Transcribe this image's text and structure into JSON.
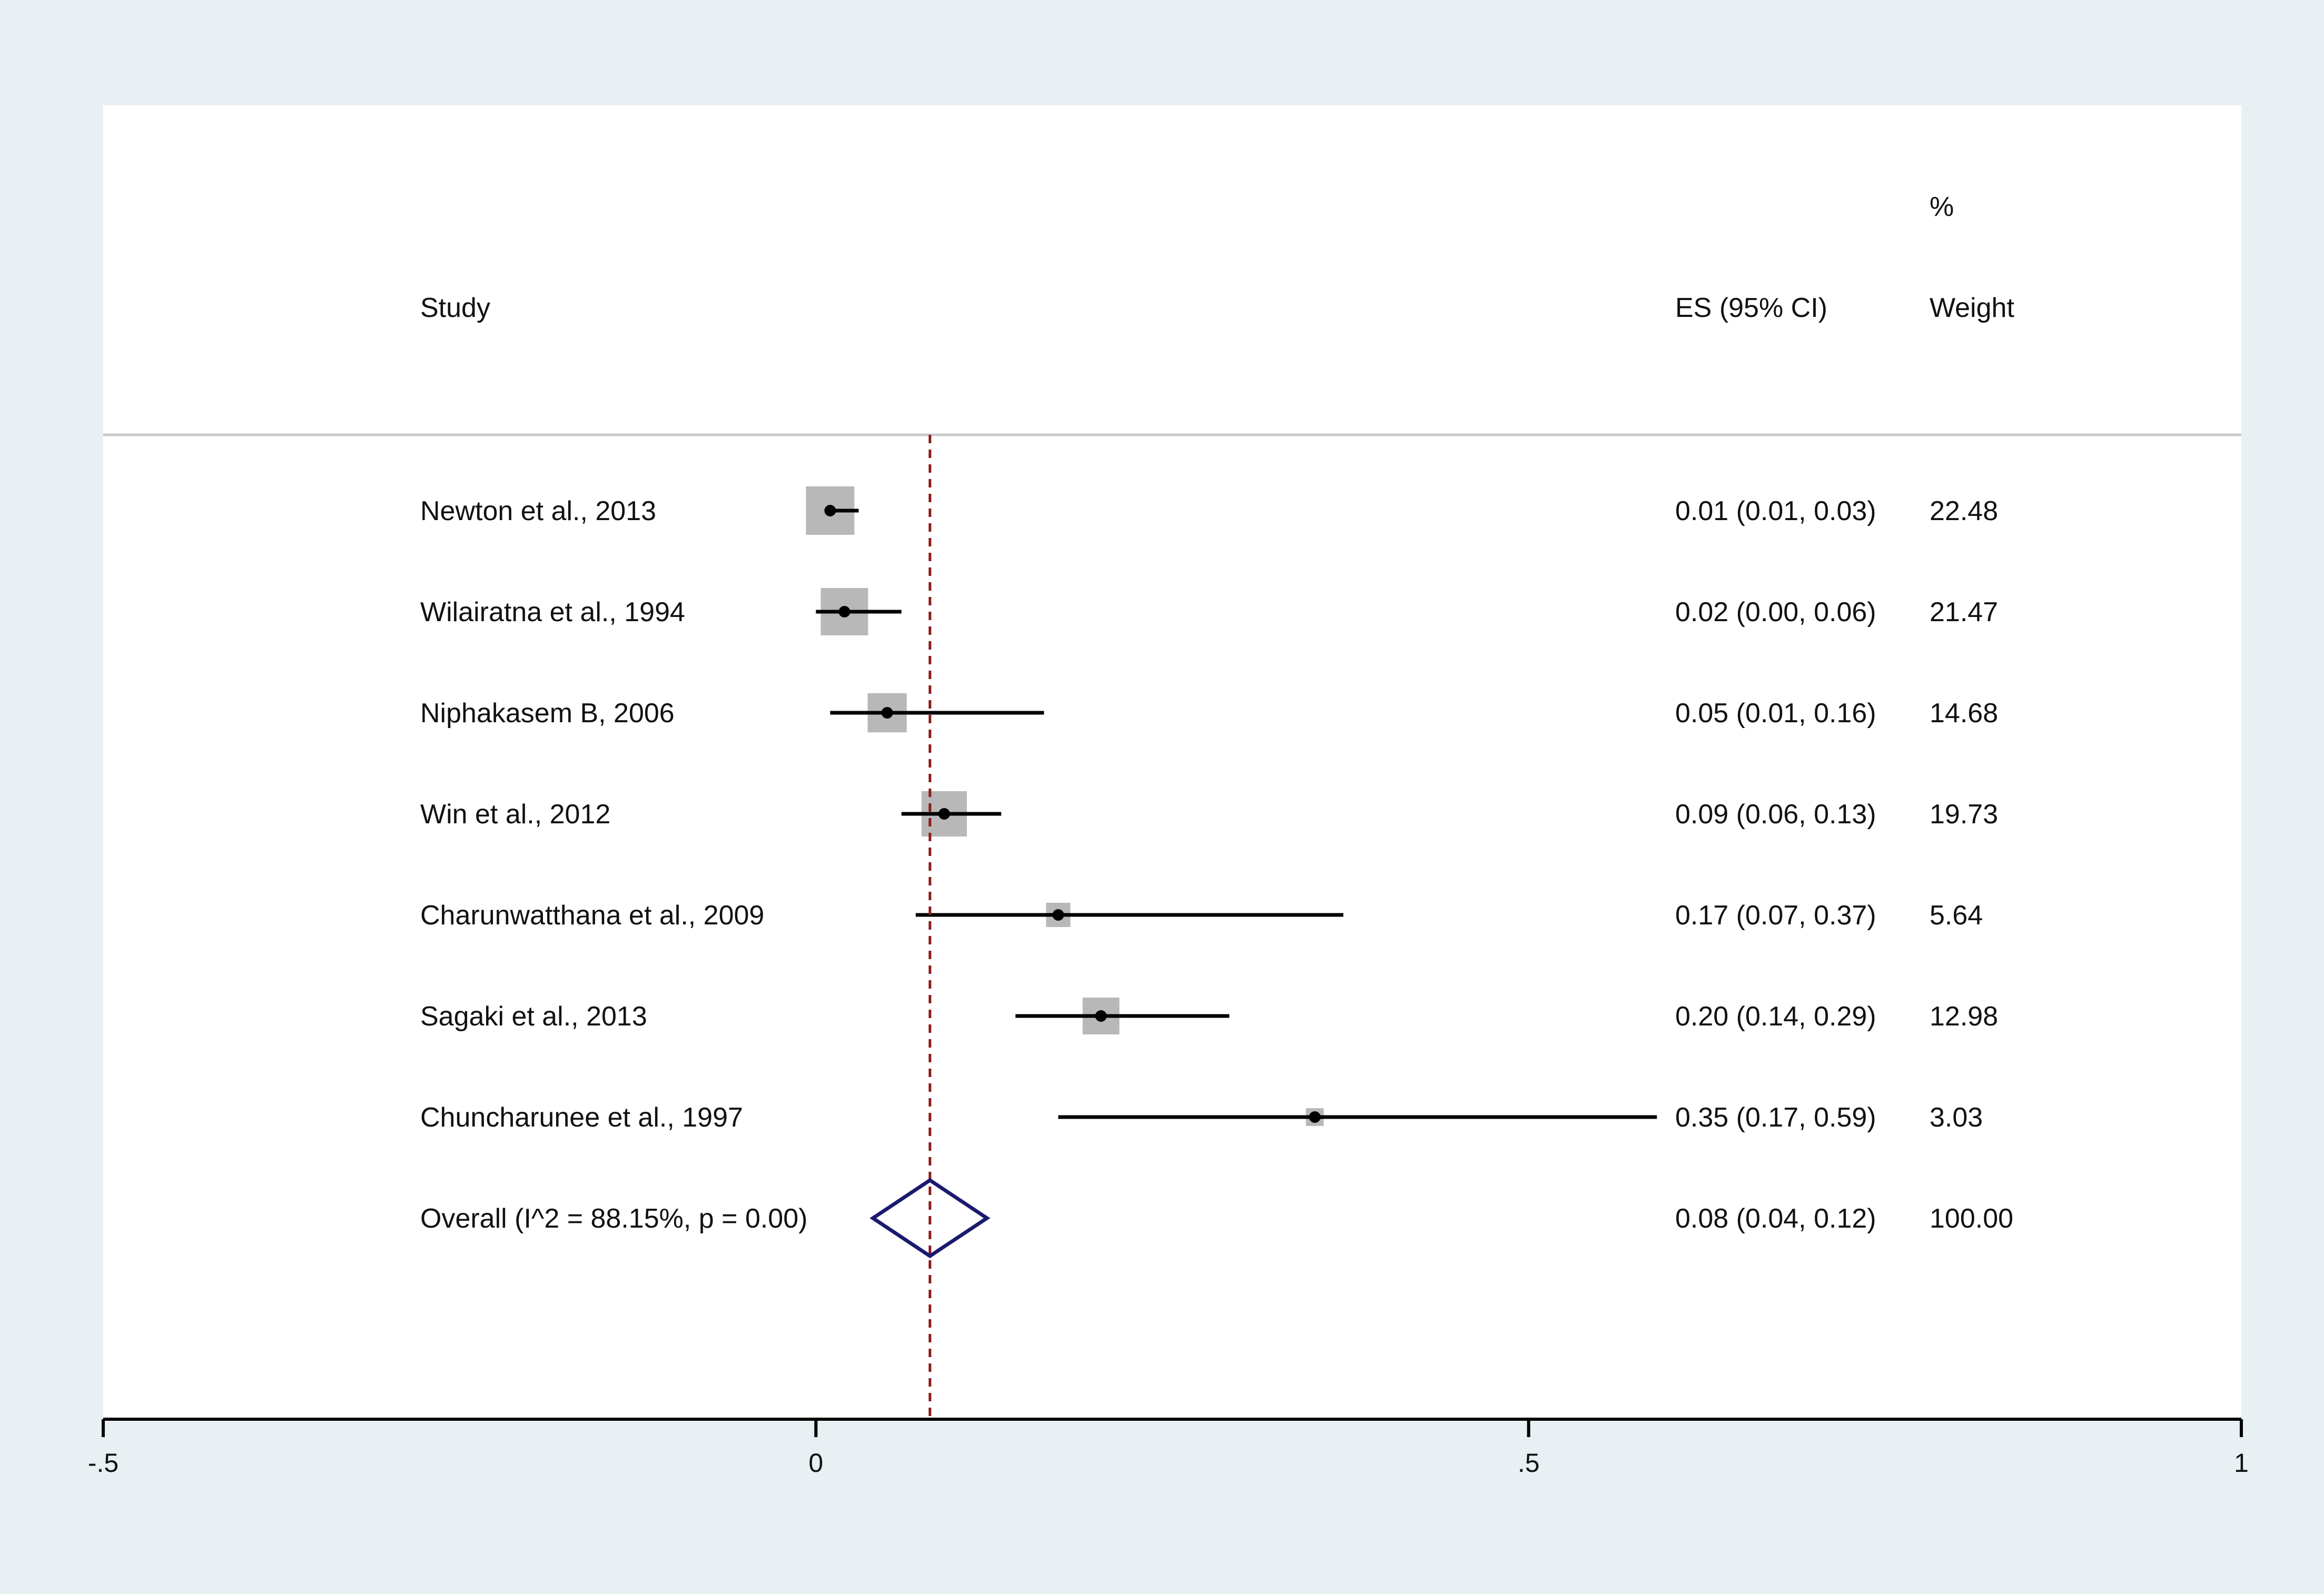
{
  "chart_data": {
    "type": "forest",
    "header": {
      "study_label": "Study",
      "es_label": "ES (95% CI)",
      "weight_label_top": "%",
      "weight_label": "Weight"
    },
    "studies": [
      {
        "name": "Newton et al., 2013",
        "es": 0.01,
        "lo": 0.01,
        "hi": 0.03,
        "ci_text": "0.01 (0.01, 0.03)",
        "weight": 22.48,
        "weight_text": "22.48"
      },
      {
        "name": "Wilairatna et al., 1994",
        "es": 0.02,
        "lo": 0.0,
        "hi": 0.06,
        "ci_text": "0.02 (0.00, 0.06)",
        "weight": 21.47,
        "weight_text": "21.47"
      },
      {
        "name": "Niphakasem B, 2006",
        "es": 0.05,
        "lo": 0.01,
        "hi": 0.16,
        "ci_text": "0.05 (0.01, 0.16)",
        "weight": 14.68,
        "weight_text": "14.68"
      },
      {
        "name": "Win et al., 2012",
        "es": 0.09,
        "lo": 0.06,
        "hi": 0.13,
        "ci_text": "0.09 (0.06, 0.13)",
        "weight": 19.73,
        "weight_text": "19.73"
      },
      {
        "name": "Charunwatthana et al., 2009",
        "es": 0.17,
        "lo": 0.07,
        "hi": 0.37,
        "ci_text": "0.17 (0.07, 0.37)",
        "weight": 5.64,
        "weight_text": "5.64"
      },
      {
        "name": "Sagaki et al., 2013",
        "es": 0.2,
        "lo": 0.14,
        "hi": 0.29,
        "ci_text": "0.20 (0.14, 0.29)",
        "weight": 12.98,
        "weight_text": "12.98"
      },
      {
        "name": "Chuncharunee et al., 1997",
        "es": 0.35,
        "lo": 0.17,
        "hi": 0.59,
        "ci_text": "0.35 (0.17, 0.59)",
        "weight": 3.03,
        "weight_text": "3.03"
      }
    ],
    "overall": {
      "name": "Overall  (I^2 = 88.15%, p = 0.00)",
      "es": 0.08,
      "lo": 0.04,
      "hi": 0.12,
      "ci_text": "0.08 (0.04, 0.12)",
      "weight_text": "100.00"
    },
    "x_axis": {
      "range": [
        -0.5,
        1
      ],
      "ticks": [
        -0.5,
        0,
        0.5,
        1
      ],
      "tick_labels": [
        "-.5",
        "0",
        ".5",
        "1"
      ]
    },
    "colors": {
      "outer_background": "#e9f0f3",
      "plot_background": "#ffffff",
      "weight_box": "#b8b8b8",
      "ci_line": "#000000",
      "overall_line": "#8b1a1a",
      "diamond": "#1a1a6e",
      "separator": "#c8c8c8"
    }
  }
}
